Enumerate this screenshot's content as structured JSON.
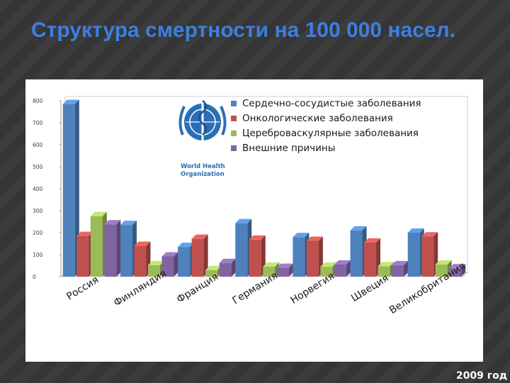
{
  "slide": {
    "title": "Структура смертности на 100 000 насел.",
    "footnote": "2009 год"
  },
  "logo": {
    "line1": "World Health",
    "line2": "Organization"
  },
  "colors": {
    "cardio": "#4f81bd",
    "onco": "#c0504d",
    "cerebro": "#9bbb59",
    "external": "#8064a2"
  },
  "chart_data": {
    "type": "bar",
    "title": "",
    "xlabel": "",
    "ylabel": "",
    "ylim": [
      0,
      800
    ],
    "yticks": [
      0,
      100,
      200,
      300,
      400,
      500,
      600,
      700,
      800
    ],
    "grid": false,
    "legend": "top-right",
    "categories": [
      "Россия",
      "Финляндия",
      "Франция",
      "Германия",
      "Норвегия",
      "Швеция",
      "Великобритания"
    ],
    "series": [
      {
        "name": "Сердечно-сосудистые заболевания",
        "color": "#4f81bd",
        "values": [
          785,
          235,
          135,
          243,
          180,
          210,
          200
        ]
      },
      {
        "name": "Онкологические заболевания",
        "color": "#c0504d",
        "values": [
          185,
          140,
          172,
          168,
          163,
          155,
          183
        ]
      },
      {
        "name": "Цереброваскулярные заболевания",
        "color": "#9bbb59",
        "values": [
          275,
          52,
          30,
          45,
          45,
          47,
          55
        ]
      },
      {
        "name": "Внешние причины",
        "color": "#8064a2",
        "values": [
          238,
          92,
          62,
          40,
          55,
          52,
          38
        ]
      }
    ]
  }
}
